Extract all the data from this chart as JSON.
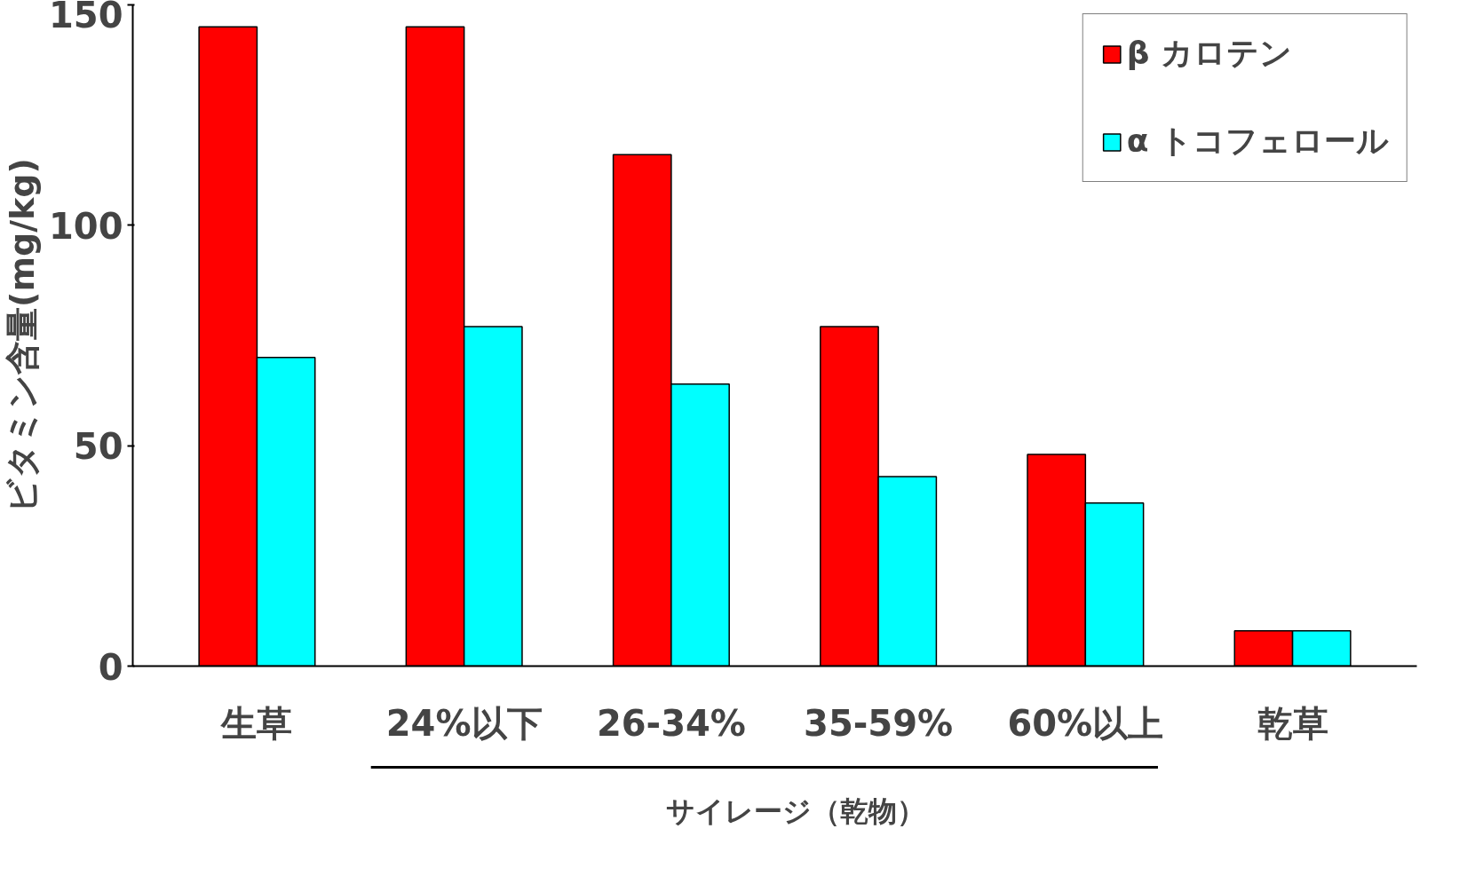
{
  "chart_data": {
    "type": "bar",
    "ylabel": "ビタミン含量(mg/kg)",
    "categories": [
      "生草",
      "24%以下",
      "26-34%",
      "35-59%",
      "60%以上",
      "乾草"
    ],
    "series": [
      {
        "name": "β カロテン",
        "color": "#ff0000",
        "values": [
          145,
          145,
          116,
          77,
          48,
          8
        ]
      },
      {
        "name": "α トコフェロール",
        "color": "#00ffff",
        "values": [
          70,
          77,
          64,
          43,
          37,
          8
        ]
      }
    ],
    "ylim": [
      0,
      150
    ],
    "yticks": [
      0,
      50,
      100,
      150
    ],
    "grid": false,
    "legend": "top right",
    "annotations": [
      "サイレージ（乾物）"
    ]
  }
}
